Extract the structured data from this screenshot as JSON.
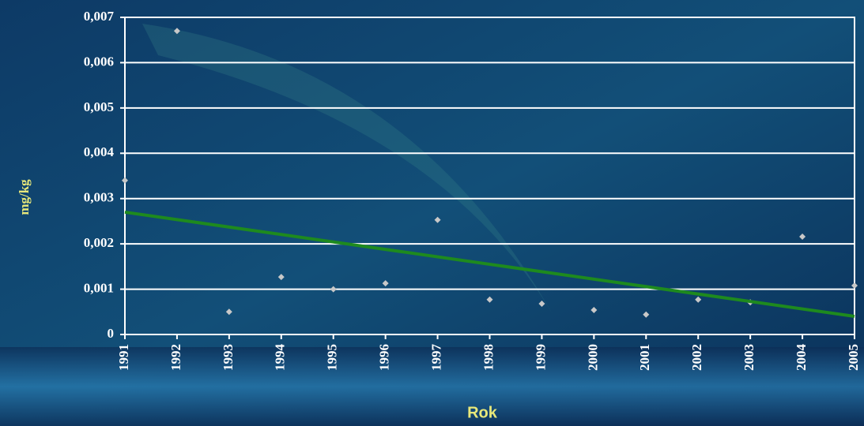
{
  "chart_data": {
    "type": "scatter",
    "x_label": "Rok",
    "y_label": "mg/kg",
    "x": [
      1991,
      1992,
      1993,
      1994,
      1995,
      1996,
      1997,
      1998,
      1999,
      2000,
      2001,
      2002,
      2003,
      2004,
      2005
    ],
    "series": [
      {
        "color": "#c8c8c8",
        "values": [
          0.0034,
          0.0067,
          0.0005,
          0.00127,
          0.001,
          0.00113,
          0.00253,
          0.00077,
          0.00068,
          0.00054,
          0.00044,
          0.00077,
          0.00071,
          0.00216,
          0.00108
        ]
      }
    ],
    "trendline": {
      "x": [
        1991,
        2005
      ],
      "values": [
        0.0027,
        0.0004
      ],
      "color": "#1e8a1e"
    },
    "xlim": [
      1991,
      2005
    ],
    "xticks": [
      1991,
      1992,
      1993,
      1994,
      1995,
      1996,
      1997,
      1998,
      1999,
      2000,
      2001,
      2002,
      2003,
      2004,
      2005
    ],
    "ylim": [
      0,
      0.007
    ],
    "yticks": [
      0,
      {
        "value": 0.001,
        "label": "0,001"
      },
      {
        "value": 0.002,
        "label": "0,002"
      },
      {
        "value": 0.003,
        "label": "0,003"
      },
      {
        "value": 0.004,
        "label": "0,004"
      },
      {
        "value": 0.005,
        "label": "0,005"
      },
      {
        "value": 0.006,
        "label": "0,006"
      },
      {
        "value": 0.007,
        "label": "0,007"
      }
    ],
    "grid": true
  }
}
